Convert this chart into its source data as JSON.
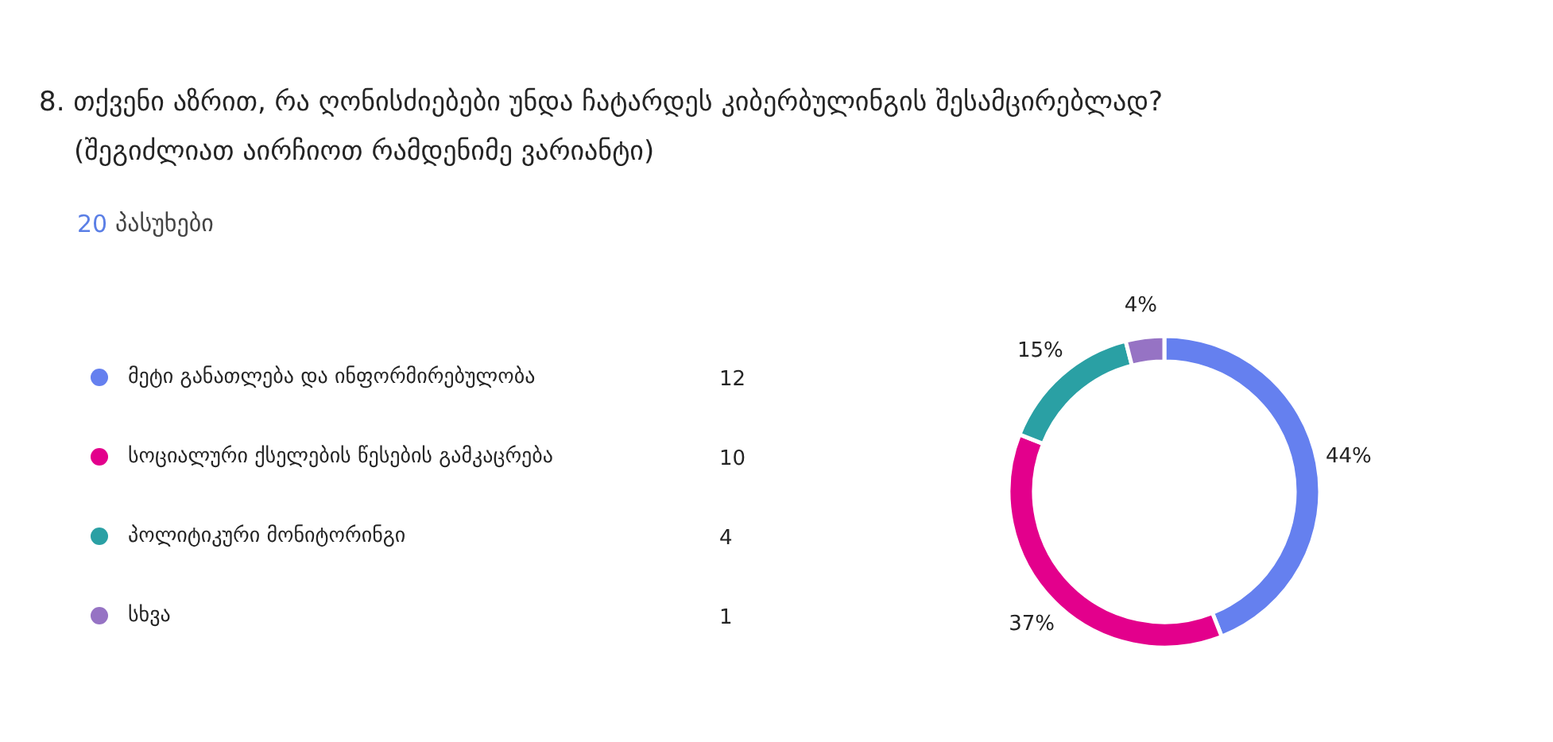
{
  "chart_data": {
    "type": "donut",
    "title": "8. თქვენი აზრით, რა ღონისძიებები უნდა ჩატარდეს კიბერბულინგის შესამცირებლად?",
    "subtitle": "(შეგიძლიათ აირჩიოთ რამდენიმე ვარიანტი)",
    "annotations": [
      "20 პასუხები",
      {
        "text": "12",
        "x": "მეტი განათლება და ინფორმირებულობა"
      },
      {
        "text": "10",
        "x": "სოციალური ქსელების წესების გამკაცრება"
      },
      {
        "text": "4",
        "x": "პოლიტიკური მონიტორინგი"
      },
      {
        "text": "1",
        "x": "სხვა"
      }
    ],
    "categories": [
      "მეტი განათლება და ინფორმირებულობა",
      "სოციალური ქსელების წესების გამკაცრება",
      "პოლიტიკური მონიტორინგი",
      "სხვა"
    ],
    "values": [
      44,
      37,
      15,
      4
    ],
    "value_labels": [
      "44%",
      "37%",
      "15%",
      "4%"
    ],
    "colors": [
      "#6580ef",
      "#e3008c",
      "#2aa0a4",
      "#9673c4"
    ],
    "legend": "left"
  }
}
